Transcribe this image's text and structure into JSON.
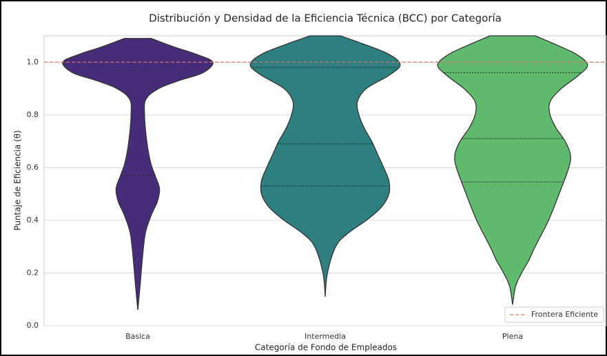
{
  "chart_data": {
    "type": "violin",
    "title": "Distribución y Densidad de la Eficiencia Técnica (BCC) por Categoría",
    "x_label": "Categoría de Fondo de Empleados",
    "y_label": "Puntaje de Eficiencia (θ)",
    "categories": [
      "Basica",
      "Intermedia",
      "Plena"
    ],
    "series": [
      {
        "name": "Basica",
        "color": "#472c7a",
        "y": [
          0.06,
          0.15,
          0.25,
          0.35,
          0.42,
          0.47,
          0.52,
          0.57,
          0.62,
          0.7,
          0.8,
          0.86,
          0.9,
          0.93,
          0.96,
          1.0,
          1.03,
          1.06,
          1.09
        ],
        "width": [
          0,
          0.03,
          0.06,
          0.1,
          0.18,
          0.26,
          0.29,
          0.23,
          0.17,
          0.12,
          0.09,
          0.11,
          0.28,
          0.55,
          0.87,
          1,
          0.78,
          0.46,
          0.18
        ],
        "quartiles": [
          0.57
        ]
      },
      {
        "name": "Intermedia",
        "color": "#2e7f80",
        "y": [
          0.11,
          0.2,
          0.3,
          0.35,
          0.4,
          0.45,
          0.5,
          0.55,
          0.6,
          0.65,
          0.7,
          0.75,
          0.8,
          0.85,
          0.9,
          0.95,
          0.99,
          1.03,
          1.07,
          1.1
        ],
        "width": [
          0,
          0.03,
          0.14,
          0.3,
          0.55,
          0.75,
          0.85,
          0.85,
          0.78,
          0.7,
          0.62,
          0.52,
          0.45,
          0.43,
          0.55,
          0.85,
          1,
          0.85,
          0.5,
          0.2
        ],
        "quartiles": [
          0.53,
          0.69,
          0.98
        ]
      },
      {
        "name": "Plena",
        "color": "#5fba6e",
        "y": [
          0.08,
          0.15,
          0.2,
          0.25,
          0.3,
          0.4,
          0.5,
          0.6,
          0.65,
          0.7,
          0.75,
          0.8,
          0.85,
          0.9,
          0.95,
          0.99,
          1.03,
          1.07,
          1.1
        ],
        "width": [
          0,
          0.04,
          0.12,
          0.22,
          0.3,
          0.48,
          0.62,
          0.75,
          0.77,
          0.7,
          0.58,
          0.5,
          0.5,
          0.65,
          0.88,
          1,
          0.85,
          0.55,
          0.3
        ],
        "quartiles": [
          0.545,
          0.71,
          0.96
        ]
      }
    ],
    "reference_line": {
      "name": "Frontera Eficiente",
      "value": 1.0,
      "color": "#d9746f"
    },
    "ylim": [
      0,
      1.1
    ],
    "yticks": [
      {
        "value": 0,
        "label": "0.0"
      },
      {
        "value": 0.2,
        "label": "0.2"
      },
      {
        "value": 0.4,
        "label": "0.4"
      },
      {
        "value": 0.6,
        "label": "0.6"
      },
      {
        "value": 0.8,
        "label": "0.8"
      },
      {
        "value": 1,
        "label": "1.0"
      }
    ],
    "grid": true,
    "legend": "lower right"
  }
}
